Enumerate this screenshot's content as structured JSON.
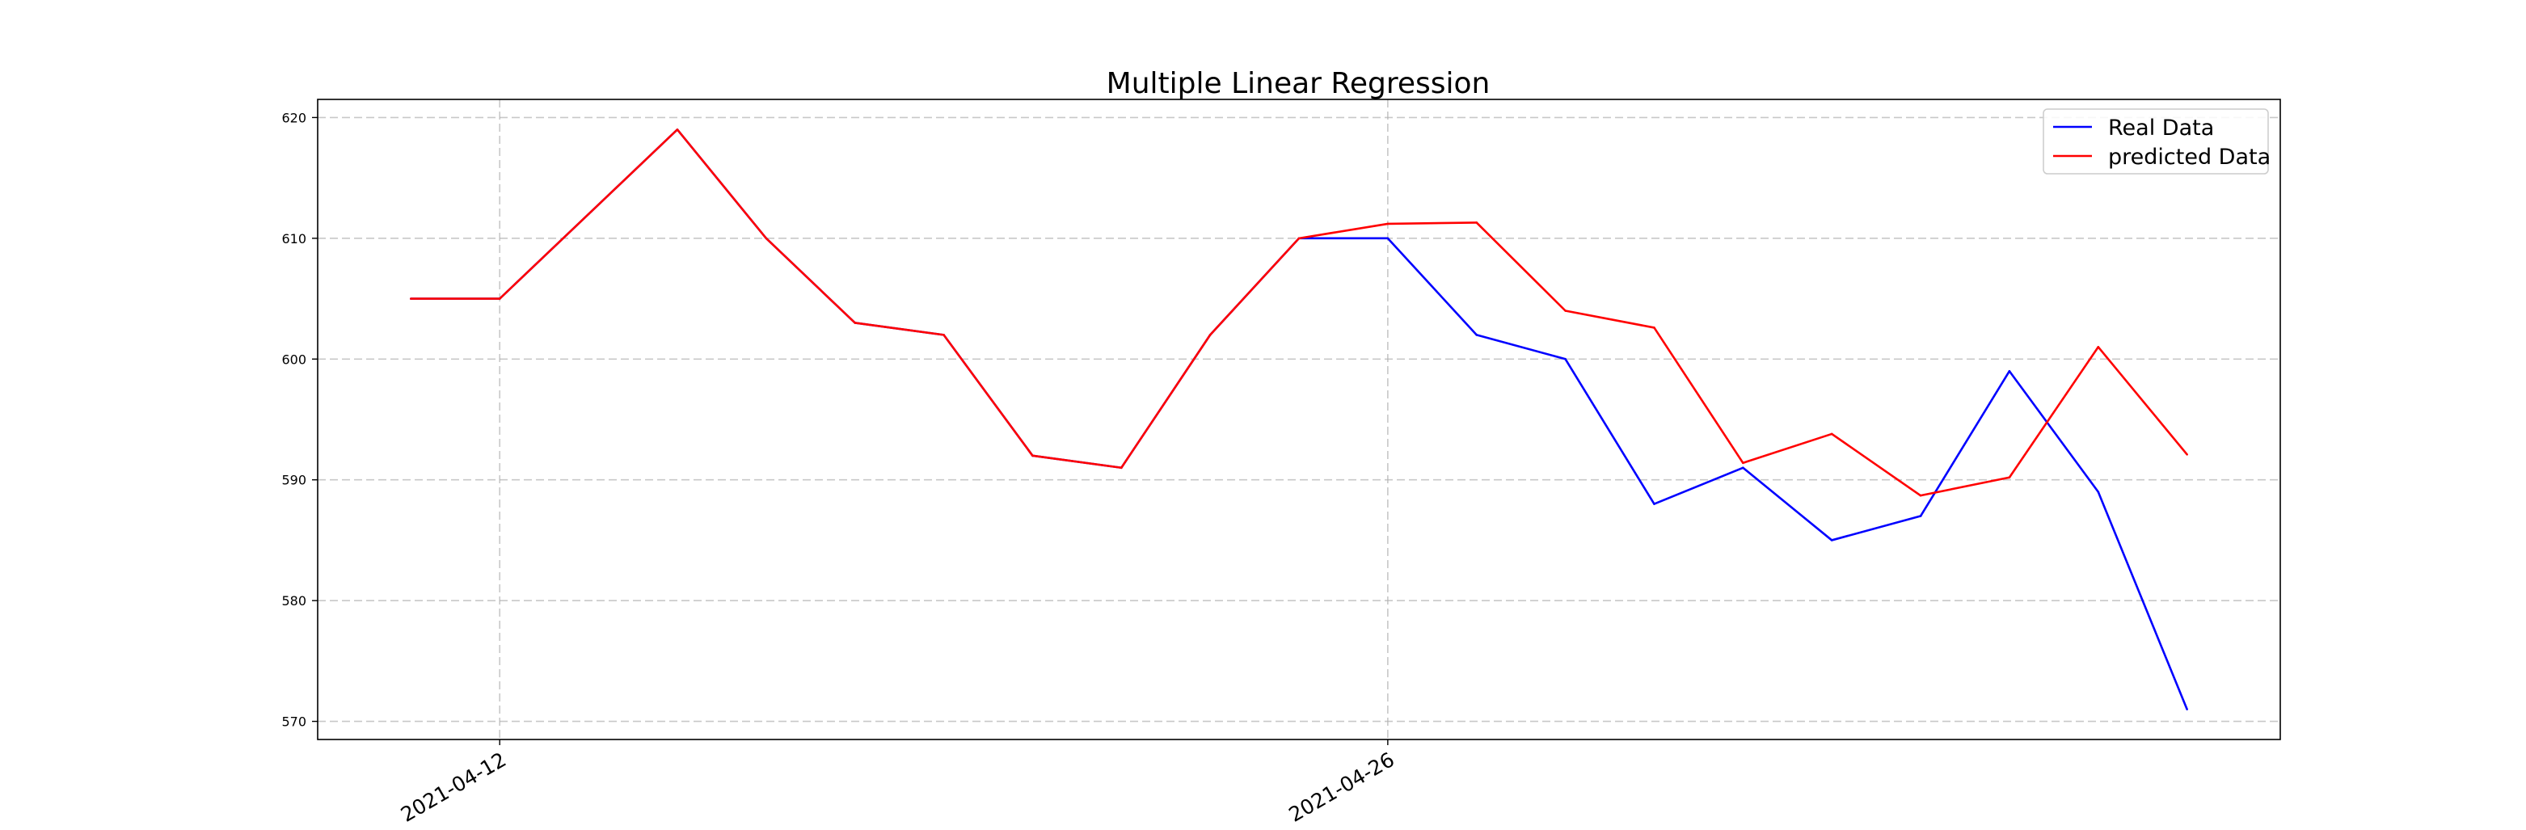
{
  "chart_data": {
    "type": "line",
    "title": "Multiple Linear Regression",
    "xlabel": "",
    "ylabel": "",
    "ylim": [
      568.5,
      621.5
    ],
    "xlim": [
      -1.05,
      21.05
    ],
    "grid": true,
    "legend_position": "top-right",
    "x_ticks": [
      {
        "index": 1,
        "label": "2021-04-12"
      },
      {
        "index": 11,
        "label": "2021-04-26"
      }
    ],
    "y_ticks": [
      570,
      580,
      590,
      600,
      610,
      620
    ],
    "series": [
      {
        "name": "Real Data",
        "color": "#0000ff",
        "values": [
          605,
          605,
          612,
          619,
          610,
          603,
          602,
          592,
          591,
          602,
          610,
          610,
          602,
          600,
          588,
          591,
          585,
          587,
          599,
          589,
          571
        ]
      },
      {
        "name": "predicted Data",
        "color": "#ff0000",
        "values": [
          605,
          605,
          612,
          619,
          610,
          603,
          602,
          592,
          591,
          602,
          610,
          611.2,
          611.3,
          604,
          602.6,
          591.4,
          593.8,
          588.7,
          590.2,
          601,
          592.1
        ]
      }
    ]
  }
}
